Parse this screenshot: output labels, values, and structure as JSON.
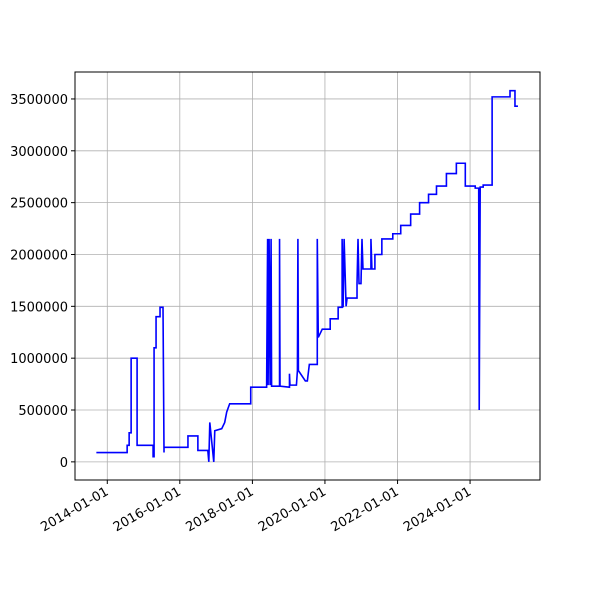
{
  "chart_data": {
    "type": "line",
    "color": "#0000ff",
    "grid": true,
    "x": [
      "2013-09-13",
      "2014-07-20",
      "2014-07-20",
      "2014-08-09",
      "2014-08-09",
      "2014-08-29",
      "2014-08-29",
      "2014-10-28",
      "2014-10-28",
      "2015-04-07",
      "2015-04-07",
      "2015-04-17",
      "2015-04-17",
      "2015-05-07",
      "2015-05-07",
      "2015-06-16",
      "2015-06-16",
      "2015-07-16",
      "2015-07-26",
      "2015-07-26",
      "2016-03-23",
      "2016-03-23",
      "2016-07-01",
      "2016-07-01",
      "2016-10-09",
      "2016-10-19",
      "2016-10-29",
      "2016-12-08",
      "2016-12-18",
      "2017-02-26",
      "2017-03-28",
      "2017-04-17",
      "2017-05-17",
      "2017-12-15",
      "2017-12-15",
      "2018-05-24",
      "2018-06-03",
      "2018-06-08",
      "2018-06-18",
      "2018-06-28",
      "2018-07-08",
      "2018-07-13",
      "2018-10-01",
      "2018-10-01",
      "2018-10-06",
      "2019-01-09",
      "2019-01-09",
      "2019-01-14",
      "2019-03-20",
      "2019-03-30",
      "2019-04-04",
      "2019-04-09",
      "2019-06-18",
      "2019-07-08",
      "2019-07-28",
      "2019-10-16",
      "2019-10-16",
      "2019-10-26",
      "2019-12-05",
      "2020-02-23",
      "2020-02-23",
      "2020-05-13",
      "2020-05-13",
      "2020-06-22",
      "2020-06-22",
      "2020-07-02",
      "2020-07-12",
      "2020-08-01",
      "2020-08-11",
      "2020-11-19",
      "2020-11-19",
      "2020-11-29",
      "2020-12-09",
      "2020-12-29",
      "2021-01-08",
      "2021-01-18",
      "2021-04-08",
      "2021-04-08",
      "2021-04-18",
      "2021-05-18",
      "2021-05-18",
      "2021-07-27",
      "2021-07-27",
      "2021-11-14",
      "2021-11-14",
      "2022-02-02",
      "2022-02-02",
      "2022-05-13",
      "2022-05-13",
      "2022-08-11",
      "2022-08-11",
      "2022-11-09",
      "2022-11-09",
      "2023-01-28",
      "2023-01-28",
      "2023-05-08",
      "2023-05-08",
      "2023-08-16",
      "2023-08-16",
      "2023-11-14",
      "2023-11-14",
      "2024-02-22",
      "2024-02-22",
      "2024-03-28",
      "2024-04-02",
      "2024-04-12",
      "2024-05-12",
      "2024-05-12",
      "2024-08-10",
      "2024-08-10",
      "2025-02-06",
      "2025-02-06",
      "2025-03-28",
      "2025-03-28",
      "2025-04-27"
    ],
    "values": [
      90000,
      90000,
      160000,
      160000,
      280000,
      280000,
      1000000,
      1000000,
      160000,
      160000,
      50000,
      50000,
      1100000,
      1100000,
      1400000,
      1400000,
      1490000,
      1490000,
      90000,
      140000,
      140000,
      250000,
      250000,
      110000,
      110000,
      0,
      380000,
      0,
      300000,
      320000,
      380000,
      480000,
      560000,
      560000,
      720000,
      720000,
      2150000,
      740000,
      2150000,
      740000,
      2150000,
      730000,
      730000,
      2150000,
      730000,
      720000,
      850000,
      740000,
      740000,
      880000,
      2150000,
      880000,
      780000,
      780000,
      940000,
      940000,
      2150000,
      1200000,
      1280000,
      1280000,
      1380000,
      1380000,
      1490000,
      1490000,
      2150000,
      1490000,
      2150000,
      1500000,
      1580000,
      1580000,
      1720000,
      2150000,
      1720000,
      1720000,
      2150000,
      1860000,
      1860000,
      2150000,
      1860000,
      1860000,
      2000000,
      2000000,
      2150000,
      2150000,
      2200000,
      2200000,
      2280000,
      2280000,
      2390000,
      2390000,
      2500000,
      2500000,
      2580000,
      2580000,
      2660000,
      2660000,
      2780000,
      2780000,
      2880000,
      2880000,
      2660000,
      2660000,
      2640000,
      2640000,
      500000,
      2650000,
      2650000,
      2670000,
      2670000,
      3520000,
      3520000,
      3580000,
      3580000,
      3430000,
      3430000
    ],
    "xlim": [
      "2013-02-10",
      "2025-12-05"
    ],
    "xticks": [
      "2014-01-01",
      "2016-01-01",
      "2018-01-01",
      "2020-01-01",
      "2022-01-01",
      "2024-01-01"
    ],
    "ylim": [
      -175000,
      3760000
    ],
    "yticks": [
      0,
      500000,
      1000000,
      1500000,
      2000000,
      2500000,
      3000000,
      3500000
    ]
  }
}
